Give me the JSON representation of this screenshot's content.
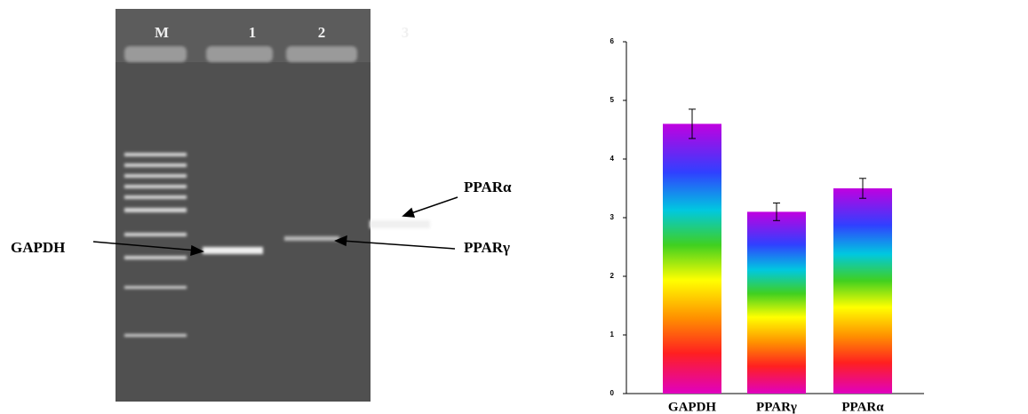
{
  "gel": {
    "lanes": [
      "M",
      "1",
      "2",
      "3"
    ],
    "band_labels": [
      "GAPDH",
      "PPARγ",
      "PPARα"
    ]
  },
  "chart_data": {
    "type": "bar",
    "categories": [
      "GAPDH",
      "PPARγ",
      "PPARα"
    ],
    "values": [
      4.6,
      3.1,
      3.5
    ],
    "errors": [
      0.25,
      0.15,
      0.17
    ],
    "ylim": [
      0,
      6
    ],
    "yticks": [
      0,
      1,
      2,
      3,
      4,
      5,
      6
    ]
  }
}
